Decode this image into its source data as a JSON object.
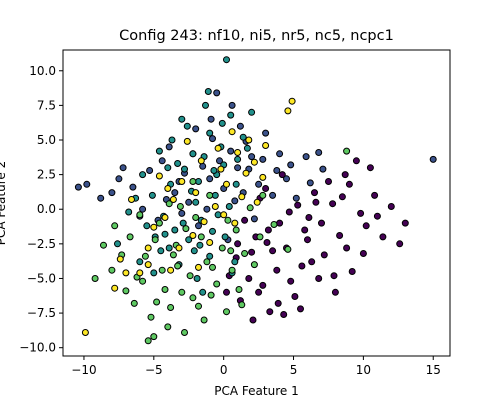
{
  "chart_data": {
    "type": "scatter",
    "title": "Config 243: nf10, ni5, nr5, nc5, ncpc1",
    "xlabel": "PCA Feature 1",
    "ylabel": "PCA Feature 2",
    "xlim": [
      -11.5,
      16.2
    ],
    "ylim": [
      -10.6,
      11.5
    ],
    "xticks": [
      -10,
      -5,
      0,
      5,
      10,
      15
    ],
    "yticks": [
      -10.0,
      -7.5,
      -5.0,
      -2.5,
      0.0,
      2.5,
      5.0,
      7.5,
      10.0
    ],
    "xtick_labels": [
      "−10",
      "−5",
      "0",
      "5",
      "10",
      "15"
    ],
    "ytick_labels": [
      "−10.0",
      "−7.5",
      "−5.0",
      "−2.5",
      "0.0",
      "2.5",
      "5.0",
      "7.5",
      "10.0"
    ],
    "grid": false,
    "legend": "none",
    "marker_edge_color": "#000000",
    "series": [
      {
        "color": "#440154",
        "points": [
          [
            3.2,
            -1.5
          ],
          [
            4.5,
            -2.8
          ],
          [
            6.1,
            -0.6
          ],
          [
            8.3,
            -1.9
          ],
          [
            9.8,
            -0.3
          ],
          [
            5.6,
            -4.1
          ],
          [
            7.2,
            -3.3
          ],
          [
            2.8,
            -5.5
          ],
          [
            10.2,
            -1.2
          ],
          [
            11.4,
            -2.0
          ],
          [
            12.6,
            -2.5
          ],
          [
            10.8,
            1.0
          ],
          [
            8.7,
            2.5
          ],
          [
            6.8,
            -5.0
          ],
          [
            5.1,
            -6.3
          ],
          [
            3.3,
            -7.4
          ],
          [
            1.2,
            -6.6
          ],
          [
            0.4,
            -4.8
          ],
          [
            2.0,
            -3.1
          ],
          [
            4.0,
            -1.0
          ],
          [
            6.5,
            1.2
          ],
          [
            7.8,
            0.4
          ],
          [
            9.2,
            -4.5
          ],
          [
            4.3,
            -7.6
          ],
          [
            3.0,
            1.5
          ],
          [
            2.3,
            -2.0
          ],
          [
            1.5,
            -0.8
          ],
          [
            9.5,
            3.5
          ],
          [
            11.0,
            -0.5
          ],
          [
            8.0,
            -6.0
          ],
          [
            6.0,
            -2.2
          ],
          [
            5.3,
            0.3
          ],
          [
            7.0,
            -1.0
          ],
          [
            3.8,
            -4.4
          ],
          [
            2.5,
            -6.0
          ],
          [
            12.0,
            0.2
          ],
          [
            9.0,
            1.8
          ],
          [
            10.5,
            3.0
          ],
          [
            4.8,
            -5.2
          ],
          [
            1.8,
            -5.0
          ],
          [
            0.9,
            -3.5
          ],
          [
            3.5,
            -3.0
          ],
          [
            6.3,
            -3.8
          ],
          [
            8.8,
            -2.8
          ],
          [
            7.5,
            2.0
          ],
          [
            5.8,
            -1.5
          ],
          [
            2.6,
            0.8
          ],
          [
            4.2,
            2.5
          ],
          [
            13.0,
            -1.0
          ],
          [
            0.2,
            -6.0
          ],
          [
            1.0,
            -2.5
          ],
          [
            3.9,
            -6.8
          ],
          [
            5.5,
            -7.2
          ],
          [
            2.1,
            -8.0
          ],
          [
            7.9,
            -4.8
          ],
          [
            6.6,
            0.5
          ],
          [
            4.7,
            -0.2
          ],
          [
            3.1,
            -2.4
          ],
          [
            8.5,
            0.9
          ],
          [
            10.0,
            -3.2
          ]
        ]
      },
      {
        "color": "#3b528b",
        "points": [
          [
            -1.5,
            3.1
          ],
          [
            0.5,
            4.2
          ],
          [
            -3.2,
            2.0
          ],
          [
            1.8,
            2.9
          ],
          [
            -6.5,
            1.6
          ],
          [
            -8.8,
            0.8
          ],
          [
            -10.4,
            1.6
          ],
          [
            -9.8,
            1.8
          ],
          [
            -4.1,
            0.7
          ],
          [
            2.8,
            3.6
          ],
          [
            4.5,
            2.2
          ],
          [
            5.9,
            3.8
          ],
          [
            7.1,
            2.9
          ],
          [
            -2.5,
            0.5
          ],
          [
            0.0,
            1.5
          ],
          [
            -0.8,
            5.1
          ],
          [
            1.2,
            6.0
          ],
          [
            -5.3,
            2.8
          ],
          [
            3.5,
            1.0
          ],
          [
            -7.2,
            3.0
          ],
          [
            -3.9,
            4.5
          ],
          [
            -1.0,
            2.2
          ],
          [
            0.8,
            0.6
          ],
          [
            2.2,
            -0.7
          ],
          [
            -4.7,
            -0.8
          ],
          [
            6.2,
            1.9
          ],
          [
            -2.0,
            5.8
          ],
          [
            1.6,
            4.9
          ],
          [
            -0.3,
            3.5
          ],
          [
            15.0,
            3.6
          ],
          [
            3.0,
            5.5
          ],
          [
            -6.0,
            -0.5
          ],
          [
            -8.0,
            1.2
          ],
          [
            4.0,
            4.0
          ],
          [
            -1.8,
            -1.2
          ],
          [
            0.3,
            -2.2
          ],
          [
            2.5,
            1.8
          ],
          [
            -3.5,
            1.2
          ],
          [
            -5.8,
            0.0
          ],
          [
            5.2,
            0.8
          ],
          [
            -0.5,
            8.4
          ],
          [
            -2.8,
            2.6
          ],
          [
            1.0,
            3.0
          ],
          [
            -1.2,
            0.0
          ],
          [
            3.8,
            2.8
          ],
          [
            -4.4,
            3.5
          ],
          [
            0.6,
            7.5
          ],
          [
            -0.9,
            6.5
          ],
          [
            2.0,
            3.8
          ],
          [
            -7.5,
            2.2
          ],
          [
            -2.2,
            4.0
          ],
          [
            1.4,
            1.2
          ],
          [
            4.8,
            3.2
          ],
          [
            6.8,
            4.1
          ],
          [
            -3.0,
            -0.3
          ]
        ]
      },
      {
        "color": "#21918c",
        "points": [
          [
            -0.5,
            2.5
          ],
          [
            0.2,
            10.8
          ],
          [
            -3.0,
            6.5
          ],
          [
            -1.0,
            5.5
          ],
          [
            0.5,
            6.8
          ],
          [
            -2.2,
            4.0
          ],
          [
            -4.0,
            3.0
          ],
          [
            -5.1,
            1.0
          ],
          [
            -1.8,
            2.0
          ],
          [
            -3.5,
            -1.5
          ],
          [
            -4.5,
            -3.0
          ],
          [
            -6.0,
            -3.8
          ],
          [
            -2.5,
            -2.2
          ],
          [
            -1.0,
            -3.4
          ],
          [
            0.1,
            -2.0
          ],
          [
            -0.6,
            1.0
          ],
          [
            1.0,
            3.6
          ],
          [
            2.0,
            7.0
          ],
          [
            -1.3,
            7.5
          ],
          [
            -2.0,
            0.5
          ],
          [
            -3.8,
            1.8
          ],
          [
            -5.5,
            -1.2
          ],
          [
            -6.8,
            -0.2
          ],
          [
            -7.6,
            -2.5
          ],
          [
            -1.6,
            -0.8
          ],
          [
            -0.2,
            4.5
          ],
          [
            1.4,
            5.2
          ],
          [
            -2.8,
            2.9
          ],
          [
            -4.3,
            -0.5
          ],
          [
            -3.2,
            -4.0
          ],
          [
            -1.9,
            -5.0
          ],
          [
            0.6,
            -4.6
          ],
          [
            -0.8,
            -1.6
          ],
          [
            0.9,
            1.8
          ],
          [
            -2.6,
            6.0
          ],
          [
            -1.1,
            8.5
          ],
          [
            0.0,
            3.2
          ],
          [
            -3.7,
            5.0
          ],
          [
            -5.8,
            2.5
          ],
          [
            -4.9,
            -2.0
          ],
          [
            -2.1,
            -3.0
          ],
          [
            -0.4,
            -0.4
          ],
          [
            0.4,
            0.2
          ],
          [
            -1.4,
            3.8
          ],
          [
            -2.9,
            -1.0
          ],
          [
            -3.9,
            -2.8
          ],
          [
            -5.0,
            -4.6
          ],
          [
            -1.5,
            -6.0
          ],
          [
            0.8,
            -3.8
          ],
          [
            -0.7,
            2.8
          ],
          [
            1.7,
            4.4
          ],
          [
            -6.3,
            0.8
          ],
          [
            -4.6,
            4.2
          ],
          [
            -2.3,
            1.3
          ],
          [
            -3.3,
            3.3
          ],
          [
            -0.1,
            6.2
          ],
          [
            -1.7,
            -2.6
          ],
          [
            -4.2,
            -1.8
          ]
        ]
      },
      {
        "color": "#5ec962",
        "points": [
          [
            -5.4,
            -9.5
          ],
          [
            -5.0,
            -9.2
          ],
          [
            -9.2,
            -5.0
          ],
          [
            -8.0,
            -4.4
          ],
          [
            -6.2,
            -4.9
          ],
          [
            -4.8,
            -6.7
          ],
          [
            -3.8,
            -7.1
          ],
          [
            -3.0,
            -6.0
          ],
          [
            -1.8,
            -7.0
          ],
          [
            -0.9,
            -6.2
          ],
          [
            -4.2,
            -5.8
          ],
          [
            -5.6,
            -3.4
          ],
          [
            -7.0,
            -5.9
          ],
          [
            -2.4,
            -4.8
          ],
          [
            -1.2,
            -3.8
          ],
          [
            0.6,
            -4.4
          ],
          [
            1.5,
            -3.2
          ],
          [
            2.6,
            -2.0
          ],
          [
            3.6,
            -1.1
          ],
          [
            4.6,
            -2.9
          ],
          [
            -0.5,
            -5.4
          ],
          [
            -3.4,
            -2.6
          ],
          [
            -2.7,
            -1.4
          ],
          [
            -4.6,
            -1.0
          ],
          [
            -6.7,
            -2.0
          ],
          [
            -8.6,
            -2.6
          ],
          [
            -7.3,
            -3.3
          ],
          [
            -1.4,
            -8.0
          ],
          [
            0.2,
            -7.4
          ],
          [
            1.1,
            -5.8
          ],
          [
            -0.1,
            -2.8
          ],
          [
            0.9,
            -1.5
          ],
          [
            -2.0,
            -0.6
          ],
          [
            -3.9,
            0.4
          ],
          [
            -5.2,
            -7.8
          ],
          [
            -4.0,
            -8.5
          ],
          [
            -6.4,
            -6.8
          ],
          [
            -2.8,
            -8.9
          ],
          [
            -3.3,
            -4.1
          ],
          [
            -1.6,
            -2.0
          ],
          [
            0.3,
            -0.8
          ],
          [
            1.9,
            0.1
          ],
          [
            2.8,
            1.0
          ],
          [
            -4.9,
            -2.2
          ],
          [
            -7.8,
            -1.2
          ],
          [
            -6.0,
            -0.4
          ],
          [
            -3.6,
            -3.3
          ],
          [
            -2.2,
            -6.4
          ],
          [
            -0.8,
            -4.2
          ],
          [
            8.8,
            4.2
          ],
          [
            -2.2,
            2.0
          ],
          [
            0.5,
            -3.0
          ],
          [
            1.3,
            -6.9
          ],
          [
            -5.8,
            -5.2
          ],
          [
            -3.1,
            0.2
          ],
          [
            -1.0,
            1.0
          ],
          [
            2.2,
            -4.0
          ],
          [
            -4.4,
            -4.4
          ]
        ]
      },
      {
        "color": "#fde725",
        "points": [
          [
            -9.9,
            -8.9
          ],
          [
            -7.8,
            -5.7
          ],
          [
            -7.0,
            -4.6
          ],
          [
            -6.0,
            -4.6
          ],
          [
            -5.4,
            -4.0
          ],
          [
            -5.0,
            -1.3
          ],
          [
            -4.2,
            -0.6
          ],
          [
            -3.6,
            0.7
          ],
          [
            -3.0,
            2.0
          ],
          [
            -2.2,
            -1.9
          ],
          [
            -1.4,
            -0.9
          ],
          [
            -0.6,
            0.2
          ],
          [
            0.2,
            1.8
          ],
          [
            1.0,
            4.1
          ],
          [
            1.8,
            5.0
          ],
          [
            2.4,
            0.5
          ],
          [
            4.9,
            7.8
          ],
          [
            4.6,
            7.1
          ],
          [
            -1.6,
            3.5
          ],
          [
            -3.2,
            -2.8
          ],
          [
            -4.6,
            2.4
          ],
          [
            -6.6,
            0.7
          ],
          [
            -2.6,
            4.9
          ],
          [
            0.8,
            -1.0
          ],
          [
            1.6,
            2.6
          ],
          [
            -0.4,
            4.4
          ],
          [
            -1.0,
            -2.4
          ],
          [
            2.2,
            3.4
          ],
          [
            3.0,
            4.6
          ],
          [
            -4.0,
            1.5
          ],
          [
            -2.0,
            1.2
          ],
          [
            0.0,
            -0.4
          ],
          [
            1.3,
            0.9
          ],
          [
            -5.4,
            -2.8
          ],
          [
            -7.4,
            -3.6
          ],
          [
            -3.8,
            -4.4
          ],
          [
            -0.2,
            2.9
          ],
          [
            0.6,
            5.6
          ],
          [
            2.8,
            2.3
          ],
          [
            -1.8,
            -4.2
          ]
        ]
      }
    ]
  }
}
